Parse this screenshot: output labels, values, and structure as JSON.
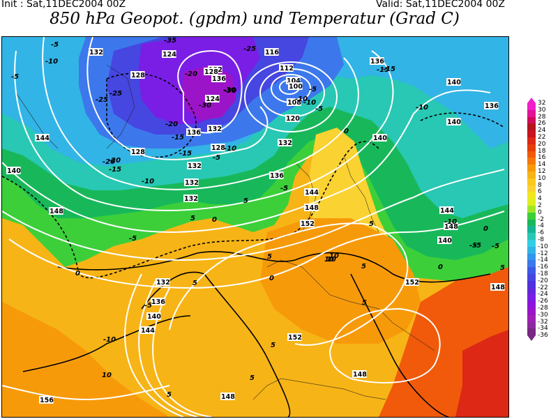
{
  "header": {
    "init_text": "Init : Sat,11DEC2004 00Z",
    "valid_text": "Valid: Sat,11DEC2004 00Z",
    "title": "850 hPa Geopot. (gpdm) und Temperatur (Grad C)"
  },
  "colors": {
    "warm_deep": "#f05a0a",
    "warm_orange": "#f79a0a",
    "warm_mid": "#f7b416",
    "warm_light": "#fad232",
    "green_light": "#c8e628",
    "green": "#3ccf3a",
    "green_dark": "#18b85a",
    "teal": "#28c8b4",
    "cyan": "#32b4e6",
    "blue": "#3c78ec",
    "indigo": "#4646e0",
    "violet": "#7a1ee6",
    "purple": "#9c14c8",
    "geopot_lines": "#ffffff",
    "temp_lines": "#000000"
  },
  "legend": {
    "values": [
      "32",
      "30",
      "28",
      "26",
      "24",
      "22",
      "20",
      "18",
      "16",
      "14",
      "12",
      "10",
      "8",
      "6",
      "4",
      "2",
      "0",
      "-2",
      "-4",
      "-6",
      "-8",
      "-10",
      "-12",
      "-14",
      "-16",
      "-18",
      "-20",
      "-22",
      "-24",
      "-26",
      "-28",
      "-30",
      "-32",
      "-34",
      "-36"
    ],
    "colors": [
      "#f020c8",
      "#e01494",
      "#d20a5a",
      "#b4141e",
      "#c8141e",
      "#dc2814",
      "#e63c0a",
      "#f05a0a",
      "#f5780a",
      "#f79a0a",
      "#f7b416",
      "#fac81e",
      "#fad232",
      "#f0e61e",
      "#dcf01e",
      "#a0e628",
      "#3ccf3a",
      "#18b85a",
      "#14b496",
      "#28c8b4",
      "#32cde6",
      "#32b4e6",
      "#3296ec",
      "#3c78ec",
      "#3c5ae6",
      "#4646e0",
      "#5032dc",
      "#6428dc",
      "#7a1ee6",
      "#8c14dc",
      "#9c14c8",
      "#a01eb4",
      "#8c28a0",
      "#782882"
    ]
  },
  "geopot_labels": [
    "132",
    "124",
    "128",
    "132",
    "136",
    "104",
    "112",
    "116",
    "136",
    "140",
    "136",
    "140",
    "144",
    "132",
    "128",
    "140",
    "148",
    "132",
    "136",
    "152",
    "144",
    "148",
    "152",
    "148",
    "132",
    "136",
    "140",
    "144",
    "148",
    "152",
    "148",
    "148",
    "156",
    "132",
    "128",
    "140",
    "124",
    "120",
    "108",
    "100",
    "144",
    "132",
    "128",
    "136",
    "132",
    "140"
  ],
  "temp_labels": [
    "-5",
    "-10",
    "-5",
    "-25",
    "-20",
    "-30",
    "-30",
    "-25",
    "-35",
    "-15",
    "-10",
    "-5",
    "-10",
    "-15",
    "-20",
    "-15",
    "-10",
    "-5",
    "0",
    "-5",
    "0",
    "5",
    "5",
    "10",
    "-15",
    "-20",
    "-10",
    "-5",
    "-10",
    "5",
    "0",
    "-5",
    "0",
    "5",
    "5",
    "5",
    "10",
    "5",
    "-10",
    "-5",
    "5",
    "10",
    "5",
    "0",
    "-5",
    "5",
    "-20",
    "-25",
    "-30",
    "5",
    "-5",
    "0",
    "10",
    "-10",
    "-5",
    "-15"
  ]
}
